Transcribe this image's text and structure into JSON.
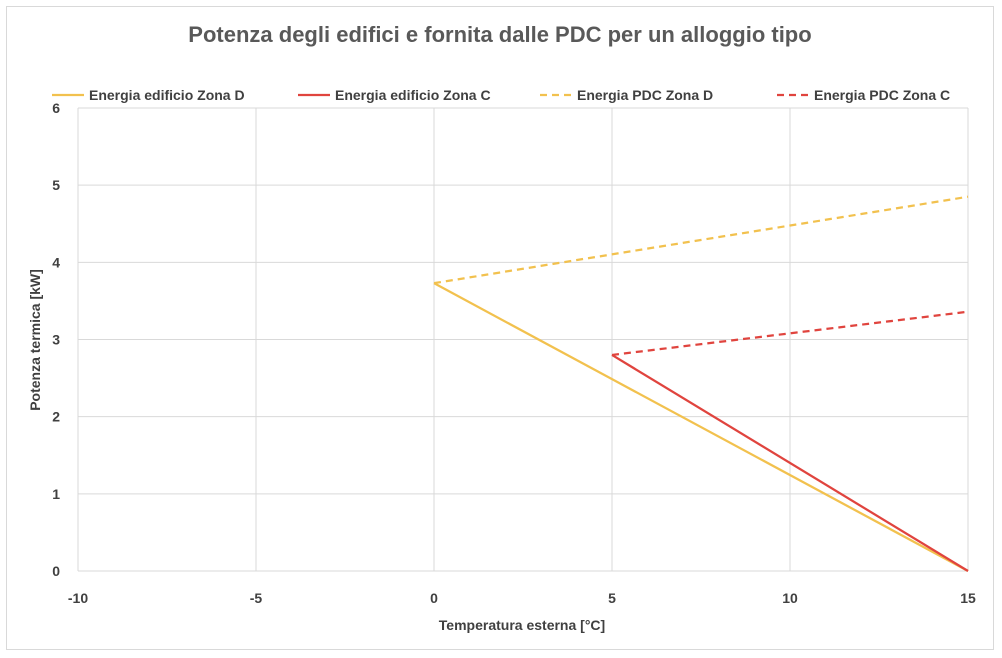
{
  "chart_data": {
    "type": "line",
    "title": "Potenza degli edifici e fornita dalle PDC per un alloggio tipo",
    "xlabel": "Temperatura esterna [°C]",
    "ylabel": "Potenza termica [kW]",
    "xlim": [
      -10,
      15
    ],
    "ylim": [
      0,
      6
    ],
    "xticks": [
      -10,
      -5,
      0,
      5,
      10,
      15
    ],
    "yticks": [
      0,
      1,
      2,
      3,
      4,
      5,
      6
    ],
    "grid": true,
    "legend_position": "top",
    "series": [
      {
        "name": "Energia edificio Zona D",
        "color": "#f2c14e",
        "dash": "solid",
        "points": [
          [
            0,
            3.73
          ],
          [
            15,
            0
          ]
        ]
      },
      {
        "name": "Energia edificio Zona C",
        "color": "#e0443e",
        "dash": "solid",
        "points": [
          [
            5,
            2.8
          ],
          [
            15,
            0
          ]
        ]
      },
      {
        "name": "Energia PDC Zona D",
        "color": "#f2c14e",
        "dash": "dashed",
        "points": [
          [
            0,
            3.73
          ],
          [
            15,
            4.85
          ]
        ]
      },
      {
        "name": "Energia PDC Zona C",
        "color": "#e0443e",
        "dash": "dashed",
        "points": [
          [
            5,
            2.8
          ],
          [
            15,
            3.36
          ]
        ]
      }
    ]
  }
}
